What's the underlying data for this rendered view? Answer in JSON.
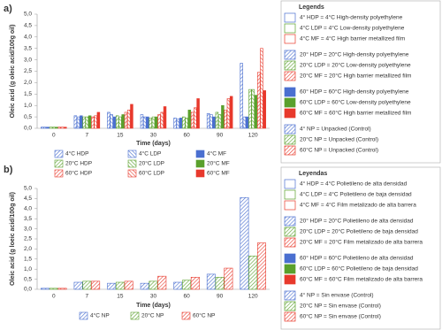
{
  "chart_data": [
    {
      "type": "bar",
      "label": "a)",
      "ylabel": "Oleic acid (g oleic acid/100g oil)",
      "xlabel": "Time (days)",
      "categories": [
        "0",
        "7",
        "15",
        "30",
        "60",
        "90",
        "120"
      ],
      "ylim": [
        0,
        5
      ],
      "yticks": [
        {
          "value": 0,
          "label": "0,0"
        },
        {
          "value": 0.5,
          "label": "0,5"
        },
        {
          "value": 1,
          "label": "1,0"
        },
        {
          "value": 1.5,
          "label": "1,5"
        },
        {
          "value": 2,
          "label": "2,0"
        },
        {
          "value": 2.5,
          "label": "2,5"
        },
        {
          "value": 3,
          "label": "3,0"
        },
        {
          "value": 3.5,
          "label": "3,5"
        },
        {
          "value": 4,
          "label": "4,0"
        },
        {
          "value": 4.5,
          "label": "4,5"
        },
        {
          "value": 5,
          "label": "5,0"
        }
      ],
      "series": [
        {
          "name": "4°C HDP",
          "color": "#4a6fd0",
          "pattern": "hatch",
          "values": [
            0.05,
            0.55,
            0.7,
            0.6,
            0.45,
            0.65,
            2.85
          ]
        },
        {
          "name": "4°C LDP",
          "color": "#4a6fd0",
          "pattern": "backhatch",
          "values": [
            0.05,
            0.5,
            0.6,
            0.5,
            0.4,
            0.6,
            0.5
          ]
        },
        {
          "name": "4°C MF",
          "color": "#4a6fd0",
          "pattern": "solid",
          "values": [
            0.05,
            0.55,
            0.5,
            0.5,
            0.45,
            0.5,
            0.5
          ]
        },
        {
          "name": "20°C HDP",
          "color": "#5aa02c",
          "pattern": "hatch",
          "values": [
            0.05,
            0.5,
            0.55,
            0.45,
            0.5,
            0.7,
            1.7
          ]
        },
        {
          "name": "20°C LDP",
          "color": "#5aa02c",
          "pattern": "backhatch",
          "values": [
            0.05,
            0.5,
            0.5,
            0.5,
            0.45,
            0.6,
            1.7
          ]
        },
        {
          "name": "20°C MF",
          "color": "#5aa02c",
          "pattern": "solid",
          "values": [
            0.05,
            0.55,
            0.6,
            0.5,
            0.8,
            1.0,
            1.45
          ]
        },
        {
          "name": "60°C HDP",
          "color": "#e8392c",
          "pattern": "hatch",
          "values": [
            0.05,
            0.5,
            0.7,
            0.6,
            0.7,
            0.8,
            2.45
          ]
        },
        {
          "name": "60°C LDP",
          "color": "#e8392c",
          "pattern": "backhatch",
          "values": [
            0.05,
            0.55,
            0.8,
            0.7,
            0.9,
            1.3,
            3.5
          ]
        },
        {
          "name": "60°C MF",
          "color": "#e8392c",
          "pattern": "solid",
          "values": [
            0.05,
            0.7,
            1.05,
            0.95,
            1.3,
            1.4,
            1.65
          ]
        }
      ]
    },
    {
      "type": "bar",
      "label": "b)",
      "ylabel": "Oleic acid (g loeic acid/100g oil)",
      "xlabel": "Time (days)",
      "categories": [
        "0",
        "7",
        "15",
        "30",
        "60",
        "90",
        "120"
      ],
      "ylim": [
        0,
        5
      ],
      "yticks": [
        {
          "value": 0,
          "label": "0,0"
        },
        {
          "value": 0.5,
          "label": "0,5"
        },
        {
          "value": 1,
          "label": "1,0"
        },
        {
          "value": 1.5,
          "label": "1,5"
        },
        {
          "value": 2,
          "label": "2,0"
        },
        {
          "value": 2.5,
          "label": "2,5"
        },
        {
          "value": 3,
          "label": "3,0"
        },
        {
          "value": 3.5,
          "label": "3,5"
        },
        {
          "value": 4,
          "label": "4,0"
        },
        {
          "value": 4.5,
          "label": "4,5"
        },
        {
          "value": 5,
          "label": "5,0"
        }
      ],
      "series": [
        {
          "name": "4°C NP",
          "color": "#4a6fd0",
          "pattern": "hatch",
          "values": [
            0.05,
            0.35,
            0.3,
            0.3,
            0.35,
            0.75,
            4.55
          ]
        },
        {
          "name": "20°C NP",
          "color": "#5aa02c",
          "pattern": "hatch",
          "values": [
            0.05,
            0.4,
            0.35,
            0.4,
            0.45,
            0.6,
            1.65
          ]
        },
        {
          "name": "60°C NP",
          "color": "#e8392c",
          "pattern": "hatch",
          "values": [
            0.05,
            0.4,
            0.4,
            0.65,
            0.6,
            1.05,
            2.3
          ]
        }
      ]
    }
  ],
  "legend_boxes": [
    {
      "title": "Legends",
      "groups": [
        {
          "swatch": "outline",
          "items": [
            {
              "text": "4° HDP = 4°C  High-density polyethylene",
              "color": "#4a6fd0"
            },
            {
              "text": "4°C LDP = 4°C Low-density polyethylene",
              "color": "#5aa02c"
            },
            {
              "text": "4°C MF = 4°C High barrier metallized film",
              "color": "#e8392c"
            }
          ]
        },
        {
          "swatch": "hatch",
          "items": [
            {
              "text": "20° HDP = 20°C  High-density polyethylene",
              "color": "#4a6fd0"
            },
            {
              "text": "20°C LDP = 20°C Low-density polyethylene",
              "color": "#5aa02c"
            },
            {
              "text": "20°C MF = 20°C High barrier metallized film",
              "color": "#e8392c"
            }
          ]
        },
        {
          "swatch": "solid",
          "items": [
            {
              "text": "60° HDP = 60°C  High-density polyethylene",
              "color": "#4a6fd0"
            },
            {
              "text": "60°C LDP = 60°C Low-density polyethylene",
              "color": "#5aa02c"
            },
            {
              "text": "60°C MF = 60°C High barrier metallized film",
              "color": "#e8392c"
            }
          ]
        },
        {
          "swatch": "hatch",
          "items": [
            {
              "text": "4° NP = Unpacked (Control)",
              "color": "#4a6fd0"
            },
            {
              "text": "20°C NP = Unpacked (Control)",
              "color": "#5aa02c"
            },
            {
              "text": "60°C NP = Unpacked (Control)",
              "color": "#e8392c"
            }
          ]
        }
      ]
    },
    {
      "title": "Leyendas",
      "groups": [
        {
          "swatch": "outline",
          "items": [
            {
              "text": "4° HDP = 4°C  Polietileno de alta densidad",
              "color": "#4a6fd0"
            },
            {
              "text": "4°C LDP = 4°C Polietileno de baja densidad",
              "color": "#5aa02c"
            },
            {
              "text": "4°C MF = 4°C Film metalizado de alta barrera",
              "color": "#e8392c"
            }
          ]
        },
        {
          "swatch": "hatch",
          "items": [
            {
              "text": "20° HDP = 20°C  Polietileno de alta densidad",
              "color": "#4a6fd0"
            },
            {
              "text": "20°C LDP = 20°C Polietileno de baja densidad",
              "color": "#5aa02c"
            },
            {
              "text": "20°C MF = 20°C Film metalizado de alta barrera",
              "color": "#e8392c"
            }
          ]
        },
        {
          "swatch": "solid",
          "items": [
            {
              "text": "60° HDP = 60°C  Polietileno de alta densidad",
              "color": "#4a6fd0"
            },
            {
              "text": "60°C LDP = 60°C Polietileno de baja densidad",
              "color": "#5aa02c"
            },
            {
              "text": "60°C MF = 60°C Film metalizado de alta barrera",
              "color": "#e8392c"
            }
          ]
        },
        {
          "swatch": "hatch",
          "items": [
            {
              "text": "4° NP = Sin envase (Control)",
              "color": "#4a6fd0"
            },
            {
              "text": "20°C NP = Sin envase (Control)",
              "color": "#5aa02c"
            },
            {
              "text": "60°C NP = Sin envase (Control)",
              "color": "#e8392c"
            }
          ]
        }
      ]
    }
  ]
}
